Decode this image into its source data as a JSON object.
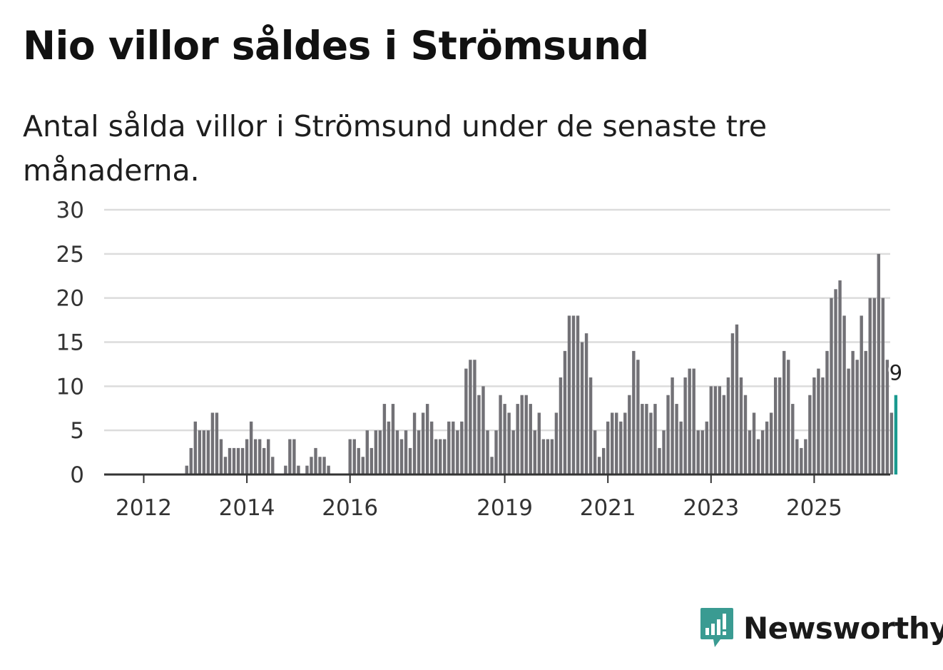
{
  "header": {
    "title": "Nio villor såldes i Strömsund",
    "subtitle": "Antal sålda villor i Strömsund under de senaste tre månaderna."
  },
  "colors": {
    "bar": "#727176",
    "highlight": "#1a9a8f",
    "grid": "#dcdcdc",
    "axis": "#333333",
    "brand": "#3a9b92"
  },
  "brand": {
    "name": "Newsworthy",
    "icon": "newsworthy-logo-icon"
  },
  "chart_data": {
    "type": "bar",
    "title": "Nio villor såldes i Strömsund",
    "xlabel": "",
    "ylabel": "",
    "ylim": [
      0,
      30
    ],
    "y_ticks": [
      0,
      5,
      10,
      15,
      20,
      25,
      30
    ],
    "x_tick_labels": [
      {
        "label": "2012",
        "index": 0
      },
      {
        "label": "2014",
        "index": 24
      },
      {
        "label": "2016",
        "index": 48
      },
      {
        "label": "2019",
        "index": 84
      },
      {
        "label": "2021",
        "index": 108
      },
      {
        "label": "2023",
        "index": 132
      },
      {
        "label": "2025",
        "index": 156
      }
    ],
    "first_period": "2011-11",
    "values": [
      0,
      0,
      0,
      0,
      0,
      0,
      0,
      0,
      0,
      0,
      1,
      3,
      6,
      5,
      5,
      5,
      7,
      7,
      4,
      2,
      3,
      3,
      3,
      3,
      4,
      6,
      4,
      4,
      3,
      4,
      2,
      0,
      0,
      1,
      4,
      4,
      1,
      0,
      1,
      2,
      3,
      2,
      2,
      1,
      0,
      0,
      0,
      0,
      4,
      4,
      3,
      2,
      5,
      3,
      5,
      5,
      8,
      6,
      8,
      5,
      4,
      5,
      3,
      7,
      5,
      7,
      8,
      6,
      4,
      4,
      4,
      6,
      6,
      5,
      6,
      12,
      13,
      13,
      9,
      10,
      5,
      2,
      5,
      9,
      8,
      7,
      5,
      8,
      9,
      9,
      8,
      5,
      7,
      4,
      4,
      4,
      7,
      11,
      14,
      18,
      18,
      18,
      15,
      16,
      11,
      5,
      2,
      3,
      6,
      7,
      7,
      6,
      7,
      9,
      14,
      13,
      8,
      8,
      7,
      8,
      3,
      5,
      9,
      11,
      8,
      6,
      11,
      12,
      12,
      5,
      5,
      6,
      10,
      10,
      10,
      9,
      11,
      16,
      17,
      11,
      9,
      5,
      7,
      4,
      5,
      6,
      7,
      11,
      11,
      14,
      13,
      8,
      4,
      3,
      4,
      9,
      11,
      12,
      11,
      14,
      20,
      21,
      22,
      18,
      12,
      14,
      13,
      18,
      14,
      20,
      20,
      25,
      20,
      13,
      7,
      9
    ],
    "highlight_last": true,
    "annotation": {
      "label": "9",
      "value": 9
    }
  }
}
